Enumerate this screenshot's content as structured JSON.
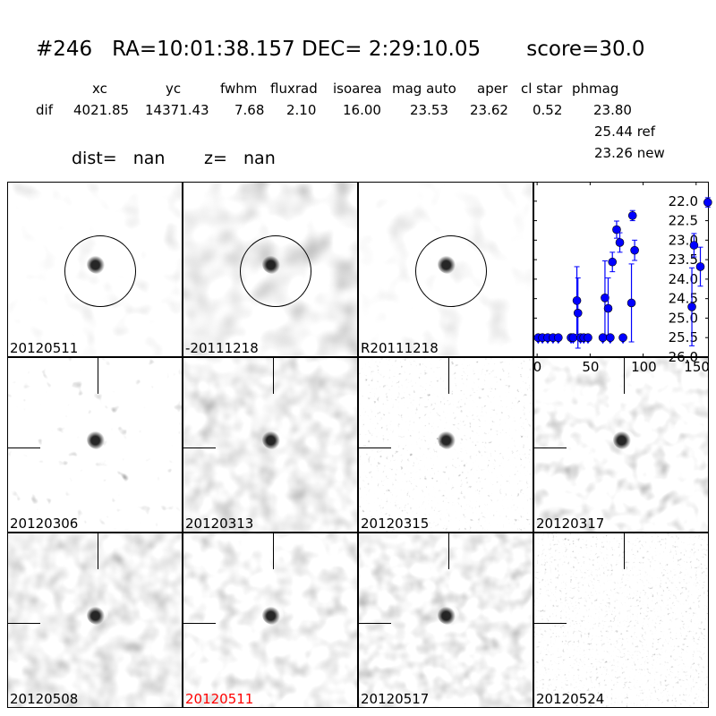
{
  "header": {
    "title": "#246   RA=10:01:38.157 DEC= 2:29:10.05       score=30.0",
    "columns": [
      "xc",
      "yc",
      "fwhm",
      "fluxrad",
      "isoarea",
      "mag auto",
      "aper",
      "cl star",
      "phmag"
    ],
    "row_label": "dif",
    "values": [
      "4021.85",
      "14371.43",
      "7.68",
      "2.10",
      "16.00",
      "23.53",
      "23.62",
      "0.52",
      "23.80"
    ],
    "ref": "25.44 ref",
    "new": "23.26 new",
    "dist": "dist=   nan",
    "z": "z=   nan"
  },
  "stamps": [
    {
      "label": "20120511",
      "color": "#000000"
    },
    {
      "label": "-20111218",
      "color": "#000000"
    },
    {
      "label": "R20111218",
      "color": "#000000"
    },
    {
      "label": "20120306",
      "color": "#000000"
    },
    {
      "label": "20120313",
      "color": "#000000"
    },
    {
      "label": "20120315",
      "color": "#000000"
    },
    {
      "label": "20120317",
      "color": "#000000"
    },
    {
      "label": "20120508",
      "color": "#000000"
    },
    {
      "label": "20120511",
      "color": "#ff0000"
    },
    {
      "label": "20120517",
      "color": "#000000"
    },
    {
      "label": "20120524",
      "color": "#000000"
    }
  ],
  "chart_data": {
    "type": "scatter",
    "xlim": [
      -3.5,
      162
    ],
    "ylim": [
      26.0,
      21.5
    ],
    "y_inverted": true,
    "xticks": [
      "0",
      "50",
      "100",
      "150"
    ],
    "yticks": [
      "22.0",
      "22.5",
      "23.0",
      "23.5",
      "24.0",
      "24.5",
      "25.0",
      "25.5",
      "26.0"
    ],
    "color": "#0000ff",
    "upper_limits": {
      "x": [
        1,
        5,
        10,
        15,
        20,
        32,
        34,
        41,
        44,
        48,
        62,
        69,
        81
      ],
      "y": 25.5
    },
    "detections": {
      "x": [
        37.5,
        38.5,
        64,
        67,
        71,
        75,
        78,
        89,
        90,
        92,
        146,
        148,
        154,
        161
      ],
      "y": [
        24.55,
        24.87,
        24.48,
        24.75,
        23.56,
        22.73,
        23.06,
        24.61,
        22.37,
        23.26,
        24.71,
        23.13,
        23.68,
        22.03
      ],
      "err": [
        0.87,
        0.9,
        0.95,
        0.78,
        0.25,
        0.22,
        0.25,
        1.0,
        0.13,
        0.26,
        1.0,
        0.3,
        0.5,
        0.12
      ]
    }
  }
}
